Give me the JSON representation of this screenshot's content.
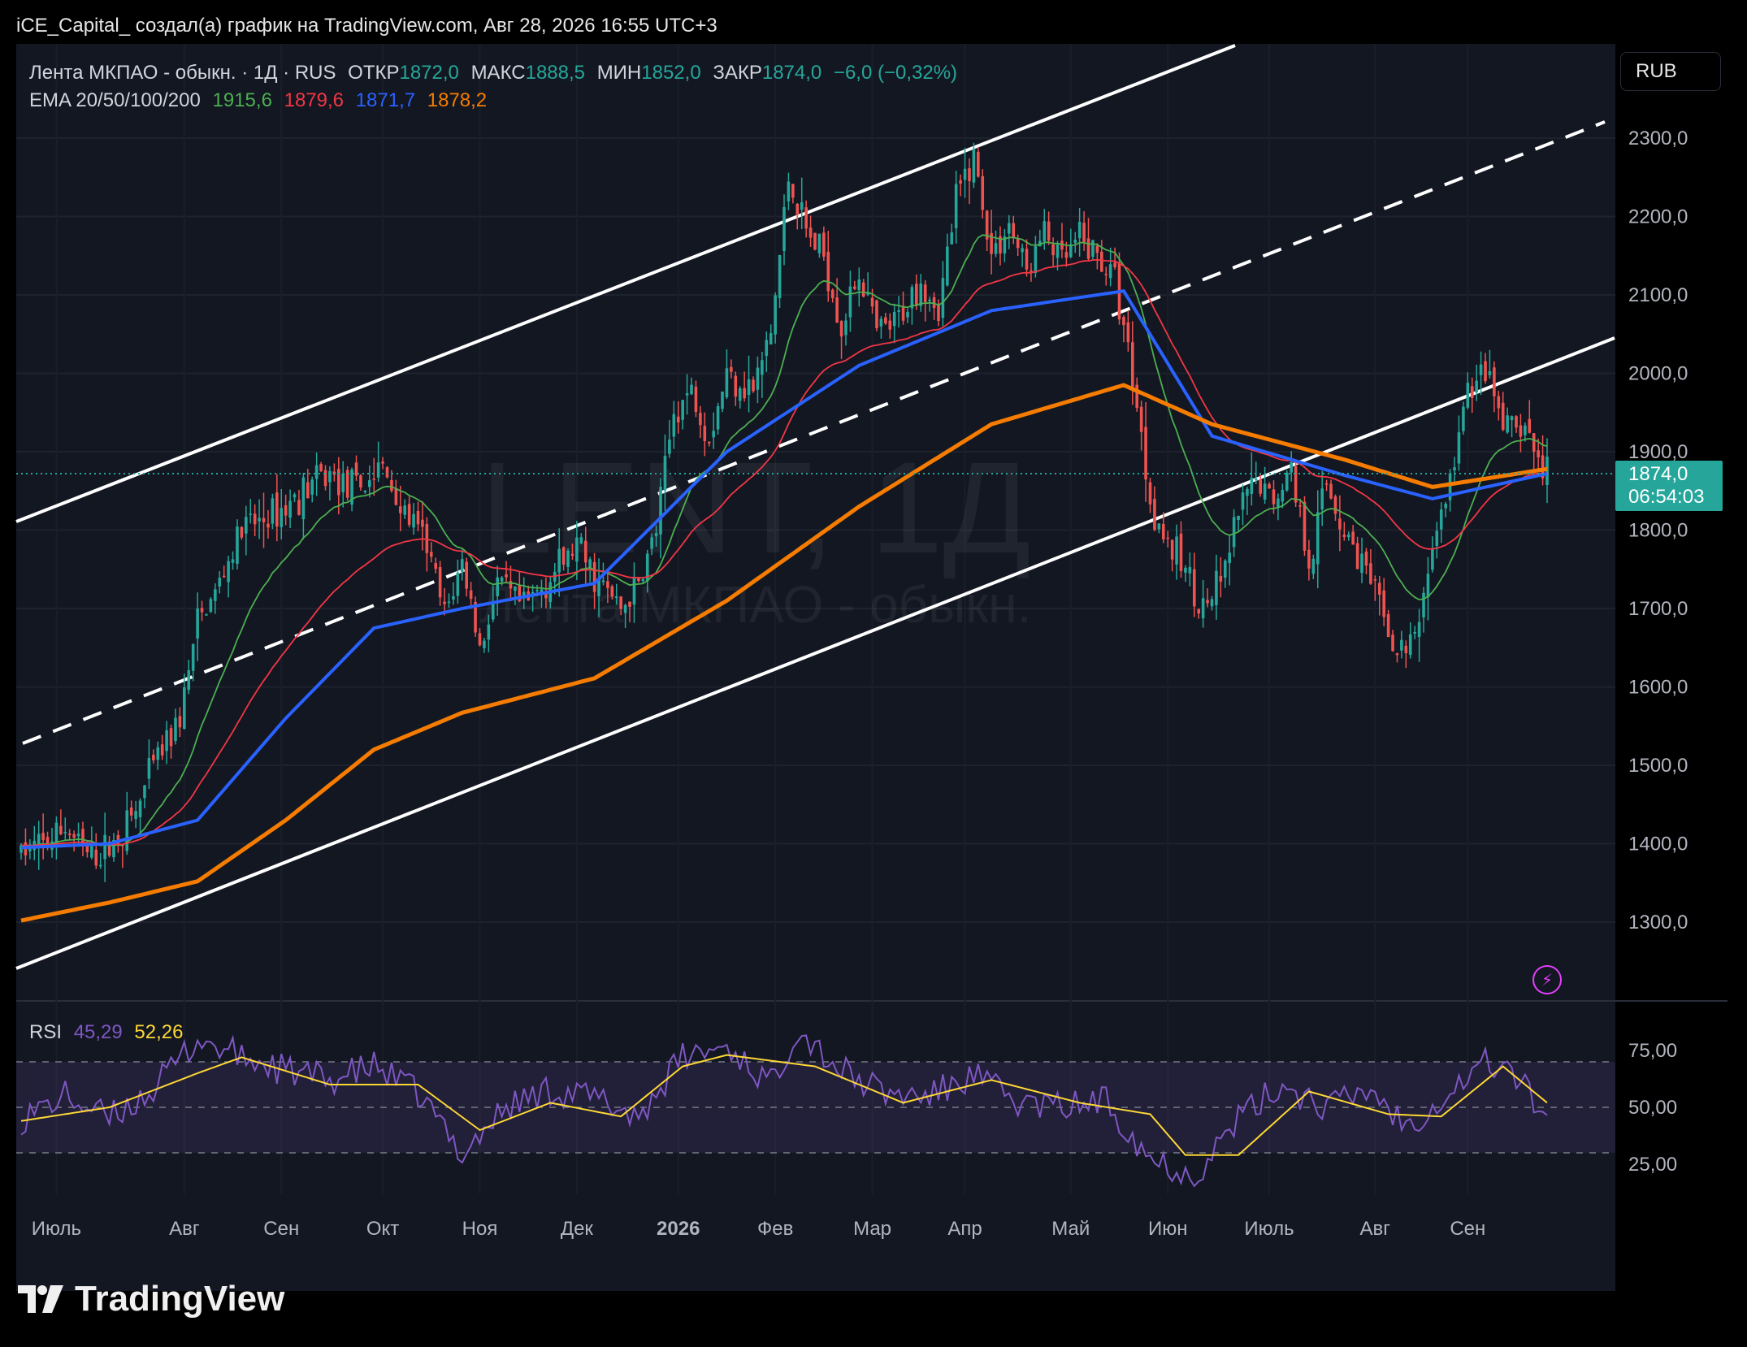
{
  "header": {
    "text": "iCE_Capital_ создал(а) график на TradingView.com, Авг 28, 2026 16:55 UTC+3"
  },
  "legend": {
    "symbol": "Лента МКПАО - обыкн. · 1Д · RUS",
    "open_label": "ОТКР",
    "open": "1872,0",
    "high_label": "МАКС",
    "high": "1888,5",
    "low_label": "МИН",
    "low": "1852,0",
    "close_label": "ЗАКР",
    "close": "1874,0",
    "change": "−6,0 (−0,32%)",
    "ema_label": "EMA 20/50/100/200",
    "ema20": "1915,6",
    "ema50": "1879,6",
    "ema100": "1871,7",
    "ema200": "1878,2"
  },
  "rsi_legend": {
    "label": "RSI",
    "rsi": "45,29",
    "ma": "52,26"
  },
  "currency": "RUB",
  "price_tag": {
    "price": "1874,0",
    "countdown": "06:54:03"
  },
  "watermark": {
    "ticker": "LENT, 1Д",
    "name": "Лента МКПАО - обыкн."
  },
  "brand": "TradingView",
  "colors": {
    "up": "#26a69a",
    "down": "#ef5350",
    "ema20": "#4caf50",
    "ema50": "#f23645",
    "ema100": "#2962ff",
    "ema200": "#f57c00",
    "rsi": "#7e57c2",
    "rsi_ma": "#fdd835"
  },
  "chart_data": {
    "type": "candlestick",
    "y_axis": {
      "ticks": [
        "2300,0",
        "2200,0",
        "2100,0",
        "2000,0",
        "1900,0",
        "1800,0",
        "1700,0",
        "1600,0",
        "1500,0",
        "1400,0",
        "1300,0"
      ],
      "range": [
        1230,
        2385
      ]
    },
    "x_axis": {
      "labels": [
        "Июль",
        "Авг",
        "Сен",
        "Окт",
        "Ноя",
        "Дек",
        "2026",
        "Фев",
        "Мар",
        "Апр",
        "Май",
        "Июн",
        "Июль",
        "Авг",
        "Сен"
      ]
    },
    "price_anchors": [
      [
        0,
        1390
      ],
      [
        6,
        1400
      ],
      [
        10,
        1420
      ],
      [
        16,
        1380
      ],
      [
        20,
        1395
      ],
      [
        26,
        1440
      ],
      [
        30,
        1500
      ],
      [
        36,
        1560
      ],
      [
        40,
        1680
      ],
      [
        44,
        1720
      ],
      [
        50,
        1800
      ],
      [
        54,
        1810
      ],
      [
        60,
        1830
      ],
      [
        66,
        1860
      ],
      [
        70,
        1870
      ],
      [
        76,
        1850
      ],
      [
        82,
        1880
      ],
      [
        86,
        1830
      ],
      [
        92,
        1780
      ],
      [
        96,
        1690
      ],
      [
        100,
        1760
      ],
      [
        104,
        1650
      ],
      [
        108,
        1730
      ],
      [
        114,
        1700
      ],
      [
        120,
        1740
      ],
      [
        126,
        1780
      ],
      [
        130,
        1740
      ],
      [
        136,
        1700
      ],
      [
        140,
        1730
      ],
      [
        144,
        1800
      ],
      [
        148,
        1950
      ],
      [
        152,
        1980
      ],
      [
        156,
        1920
      ],
      [
        160,
        2000
      ],
      [
        166,
        1980
      ],
      [
        170,
        2050
      ],
      [
        174,
        2250
      ],
      [
        178,
        2180
      ],
      [
        182,
        2150
      ],
      [
        186,
        2060
      ],
      [
        190,
        2130
      ],
      [
        194,
        2050
      ],
      [
        198,
        2060
      ],
      [
        204,
        2120
      ],
      [
        208,
        2080
      ],
      [
        212,
        2220
      ],
      [
        216,
        2280
      ],
      [
        220,
        2150
      ],
      [
        224,
        2190
      ],
      [
        228,
        2130
      ],
      [
        232,
        2180
      ],
      [
        236,
        2140
      ],
      [
        240,
        2170
      ],
      [
        244,
        2150
      ],
      [
        248,
        2120
      ],
      [
        252,
        2000
      ],
      [
        256,
        1840
      ],
      [
        260,
        1780
      ],
      [
        264,
        1750
      ],
      [
        268,
        1700
      ],
      [
        272,
        1730
      ],
      [
        276,
        1820
      ],
      [
        280,
        1860
      ],
      [
        284,
        1840
      ],
      [
        288,
        1880
      ],
      [
        292,
        1760
      ],
      [
        296,
        1860
      ],
      [
        300,
        1800
      ],
      [
        304,
        1760
      ],
      [
        308,
        1700
      ],
      [
        312,
        1640
      ],
      [
        316,
        1660
      ],
      [
        320,
        1780
      ],
      [
        324,
        1860
      ],
      [
        328,
        1980
      ],
      [
        332,
        2000
      ],
      [
        336,
        1930
      ],
      [
        340,
        1930
      ],
      [
        344,
        1895
      ],
      [
        346,
        1874
      ]
    ],
    "ema200_anchors": [
      [
        0,
        1302
      ],
      [
        20,
        1325
      ],
      [
        40,
        1352
      ],
      [
        60,
        1430
      ],
      [
        80,
        1520
      ],
      [
        100,
        1567
      ],
      [
        130,
        1611
      ],
      [
        160,
        1710
      ],
      [
        190,
        1830
      ],
      [
        220,
        1935
      ],
      [
        250,
        1985
      ],
      [
        270,
        1935
      ],
      [
        300,
        1890
      ],
      [
        320,
        1855
      ],
      [
        346,
        1878
      ]
    ],
    "ema100_anchors": [
      [
        0,
        1395
      ],
      [
        20,
        1400
      ],
      [
        40,
        1430
      ],
      [
        60,
        1560
      ],
      [
        80,
        1675
      ],
      [
        100,
        1700
      ],
      [
        130,
        1732
      ],
      [
        160,
        1900
      ],
      [
        190,
        2010
      ],
      [
        220,
        2080
      ],
      [
        250,
        2105
      ],
      [
        270,
        1920
      ],
      [
        300,
        1870
      ],
      [
        320,
        1840
      ],
      [
        346,
        1872
      ]
    ],
    "rsi": {
      "levels": [
        "75,00",
        "50,00",
        "25,00"
      ],
      "anchors": [
        [
          0,
          45
        ],
        [
          10,
          55
        ],
        [
          20,
          45
        ],
        [
          30,
          58
        ],
        [
          40,
          80
        ],
        [
          50,
          72
        ],
        [
          60,
          66
        ],
        [
          70,
          62
        ],
        [
          80,
          68
        ],
        [
          90,
          56
        ],
        [
          100,
          30
        ],
        [
          110,
          50
        ],
        [
          120,
          58
        ],
        [
          130,
          54
        ],
        [
          140,
          46
        ],
        [
          150,
          72
        ],
        [
          160,
          77
        ],
        [
          170,
          60
        ],
        [
          176,
          85
        ],
        [
          186,
          66
        ],
        [
          196,
          56
        ],
        [
          206,
          55
        ],
        [
          216,
          64
        ],
        [
          226,
          52
        ],
        [
          236,
          50
        ],
        [
          246,
          53
        ],
        [
          256,
          28
        ],
        [
          266,
          20
        ],
        [
          276,
          45
        ],
        [
          286,
          60
        ],
        [
          296,
          50
        ],
        [
          306,
          58
        ],
        [
          314,
          42
        ],
        [
          322,
          54
        ],
        [
          332,
          70
        ],
        [
          338,
          66
        ],
        [
          346,
          45
        ]
      ],
      "ma_anchors": [
        [
          0,
          44
        ],
        [
          20,
          50
        ],
        [
          40,
          65
        ],
        [
          50,
          72
        ],
        [
          70,
          60
        ],
        [
          90,
          60
        ],
        [
          104,
          40
        ],
        [
          120,
          52
        ],
        [
          136,
          46
        ],
        [
          150,
          68
        ],
        [
          160,
          73
        ],
        [
          180,
          68
        ],
        [
          200,
          52
        ],
        [
          220,
          62
        ],
        [
          240,
          52
        ],
        [
          256,
          47
        ],
        [
          264,
          29
        ],
        [
          276,
          29
        ],
        [
          292,
          57
        ],
        [
          310,
          47
        ],
        [
          322,
          46
        ],
        [
          336,
          68
        ],
        [
          346,
          52
        ]
      ]
    }
  }
}
